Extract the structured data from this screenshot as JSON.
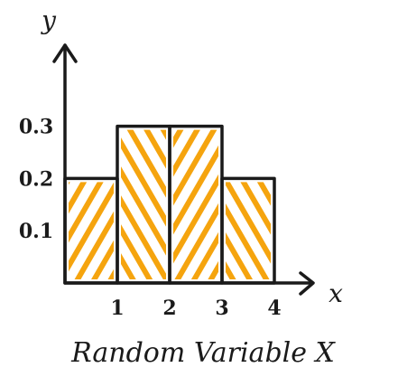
{
  "chart_data": {
    "type": "bar",
    "categories": [
      "1",
      "2",
      "3",
      "4"
    ],
    "values": [
      0.2,
      0.3,
      0.3,
      0.2
    ],
    "x_ticks": [
      "1",
      "2",
      "3",
      "4"
    ],
    "y_ticks": [
      "0.1",
      "0.2",
      "0.3"
    ],
    "y_axis_letter": "y",
    "x_axis_letter": "x",
    "xlabel": "Random Variable X",
    "ylim": [
      0,
      0.3
    ],
    "fill_color": "#F5A40E",
    "outline_color": "#1a1a1a",
    "grid": false
  }
}
